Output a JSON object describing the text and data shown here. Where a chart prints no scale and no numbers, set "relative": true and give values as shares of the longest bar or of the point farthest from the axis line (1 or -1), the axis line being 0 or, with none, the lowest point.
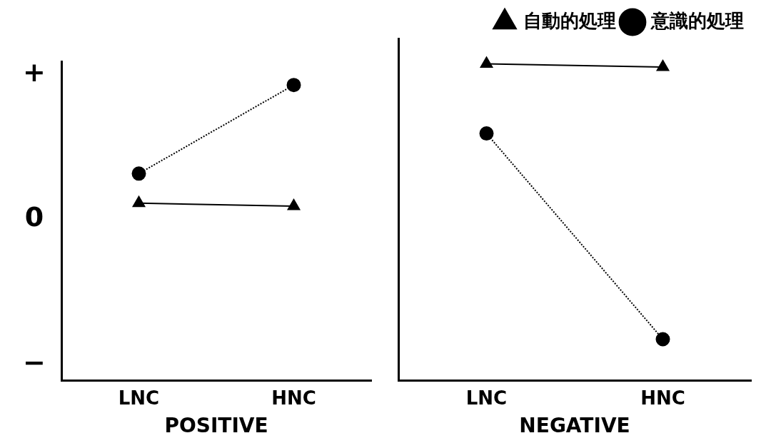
{
  "chart_data": [
    {
      "type": "line",
      "relative": true,
      "categories": [
        "LNC",
        "HNC"
      ],
      "xlabel": "POSITIVE",
      "legend": false,
      "annotations": [
        "+",
        "0",
        "−"
      ],
      "series": [
        {
          "color": "#000000",
          "marker": "triangle",
          "line_style": "solid",
          "values": [
            0.6,
            0.59
          ]
        },
        {
          "color": "#000000",
          "marker": "circle",
          "line_style": "dotted",
          "values": [
            0.7,
            1
          ]
        }
      ]
    },
    {
      "type": "line",
      "relative": true,
      "categories": [
        "LNC",
        "HNC"
      ],
      "xlabel": "NEGATIVE",
      "legend": "top right",
      "series": [
        {
          "name": "自動的処理",
          "color": "#000000",
          "marker": "triangle",
          "line_style": "solid",
          "values": [
            1,
            0.99
          ]
        },
        {
          "name": "意識的処理",
          "color": "#000000",
          "marker": "circle",
          "line_style": "dotted",
          "values": [
            0.78,
            0.13
          ]
        }
      ]
    }
  ]
}
